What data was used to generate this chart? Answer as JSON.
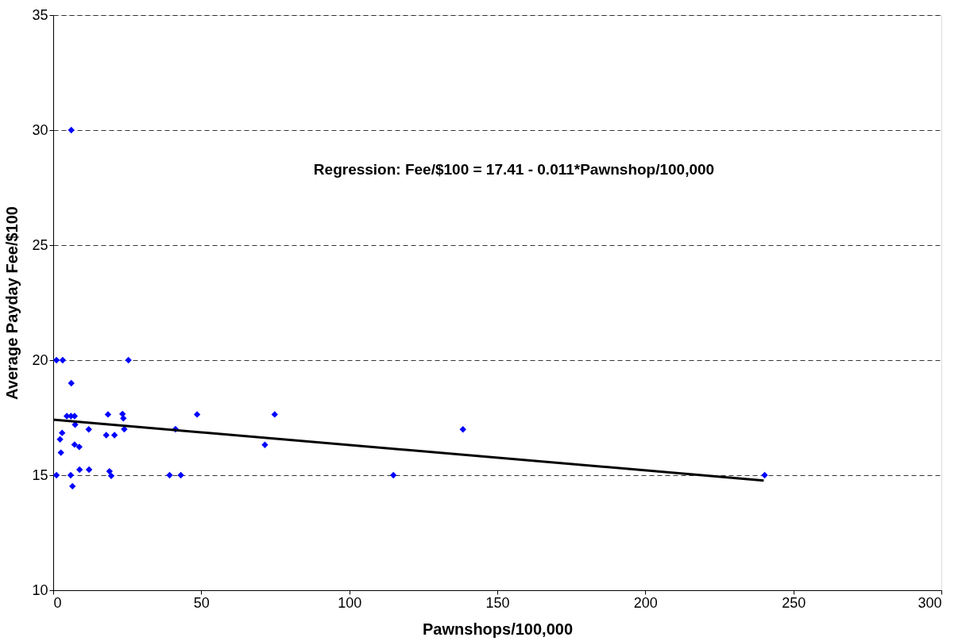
{
  "chart_data": {
    "type": "scatter",
    "xlabel": "Pawnshops/100,000",
    "ylabel": "Average Payday Fee/$100",
    "xlim": [
      0,
      300
    ],
    "xticks": [
      0,
      50,
      100,
      150,
      200,
      250,
      300
    ],
    "ylim": [
      10,
      35
    ],
    "yticks": [
      10,
      15,
      20,
      25,
      30,
      35
    ],
    "grid": "y",
    "annotations": [
      "Regression: Fee/$100 =  17.41  -  0.011*Pawnshop/100,000"
    ],
    "series": [
      {
        "marker": "diamond",
        "color": "#0000ff",
        "x": [
          1.1,
          3.2,
          25.4,
          6.1,
          6.1,
          4.6,
          6.0,
          7.2,
          7.4,
          18.5,
          23.4,
          23.7,
          48.6,
          12.0,
          24.0,
          41.3,
          3.0,
          2.3,
          17.9,
          20.7,
          7.2,
          8.8,
          2.6,
          8.9,
          12.1,
          19.0,
          19.6,
          1.1,
          5.9,
          6.5,
          39.3,
          43.1,
          71.5,
          74.8,
          138.4,
          114.9,
          240.3
        ],
        "values": [
          20,
          20,
          20,
          30,
          19.0,
          17.57,
          17.57,
          17.57,
          17.2,
          17.64,
          17.66,
          17.47,
          17.64,
          16.99,
          17.0,
          17.0,
          16.84,
          16.56,
          16.74,
          16.74,
          16.33,
          16.23,
          15.98,
          15.24,
          15.24,
          15.17,
          14.97,
          15,
          15,
          14.52,
          15,
          15,
          16.32,
          17.64,
          16.99,
          15,
          15
        ]
      },
      {
        "type": "line",
        "marker": "none",
        "color": "#000000",
        "line_style": "solid",
        "x": [
          0,
          240
        ],
        "values": [
          17.41,
          14.77
        ]
      }
    ]
  }
}
